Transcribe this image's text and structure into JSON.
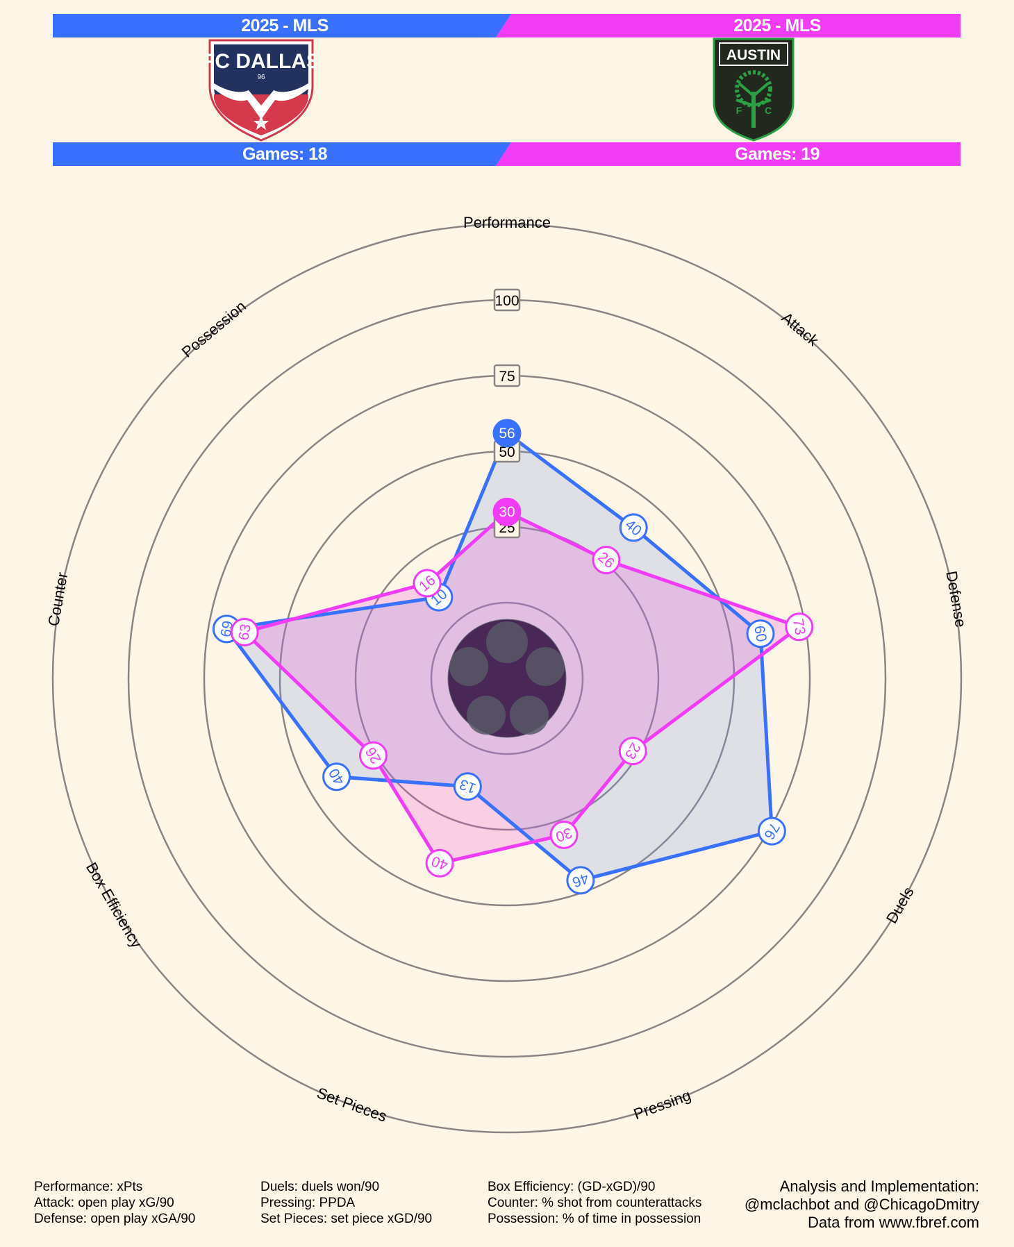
{
  "header": {
    "left": {
      "league": "2025 - MLS",
      "games": "Games: 18",
      "logo_text": "FC DALLAS",
      "logo_number": "96",
      "color": "#3a70ff"
    },
    "right": {
      "league": "2025 - MLS",
      "games": "Games: 19",
      "logo_text": "AUSTIN",
      "logo_letters": [
        "F",
        "C"
      ],
      "color": "#f03cf5"
    }
  },
  "chart_data": {
    "type": "radar",
    "axes": [
      "Performance",
      "Attack",
      "Defense",
      "Duels",
      "Pressing",
      "Set Pieces",
      "Box Efficiency",
      "Counter",
      "Possession"
    ],
    "rlim": [
      0,
      100
    ],
    "ring_labels": [
      25,
      50,
      75,
      100
    ],
    "series": [
      {
        "color": "#3a70ff",
        "values": [
          56,
          40,
          60,
          76,
          46,
          13,
          40,
          69,
          10
        ]
      },
      {
        "color": "#f03cf5",
        "values": [
          30,
          26,
          73,
          23,
          30,
          40,
          26,
          63,
          16
        ]
      }
    ]
  },
  "footer": {
    "col1": [
      "Performance: xPts",
      "Attack: open play xG/90",
      "Defense: open play xGA/90"
    ],
    "col2": [
      "Duels: duels won/90",
      "Pressing: PPDA",
      "Set Pieces: set piece xGD/90"
    ],
    "col3": [
      "Box Efficiency: (GD-xGD)/90",
      "Counter: % shot from counterattacks",
      "Possession: % of time in possession"
    ],
    "credits": [
      "Analysis and Implementation:",
      "@mclachbot and @ChicagoDmitry",
      "Data from www.fbref.com"
    ]
  }
}
